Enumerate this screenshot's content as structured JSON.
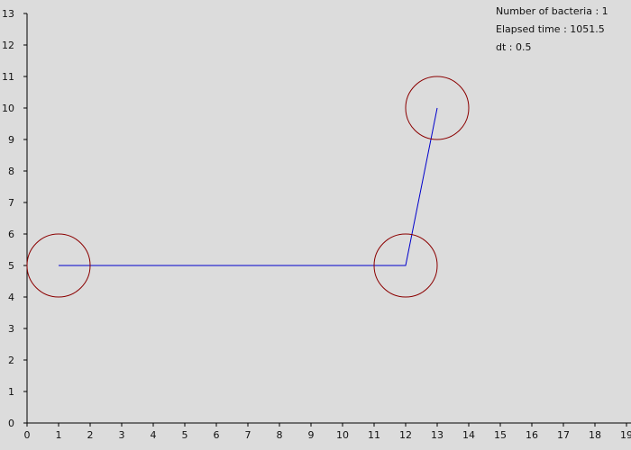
{
  "info": {
    "bacteria_label": "Number of bacteria",
    "bacteria_count": "1",
    "elapsed_label": "Elapsed time",
    "elapsed_value": "1051.5",
    "dt_label": "dt",
    "dt_value": "0.5"
  },
  "chart_data": {
    "type": "line",
    "title": "",
    "xlabel": "",
    "ylabel": "",
    "xlim": [
      0,
      19
    ],
    "ylim": [
      0,
      13
    ],
    "x_ticks": [
      0,
      1,
      2,
      3,
      4,
      5,
      6,
      7,
      8,
      9,
      10,
      11,
      12,
      13,
      14,
      15,
      16,
      17,
      18,
      19
    ],
    "y_ticks": [
      0,
      1,
      2,
      3,
      4,
      5,
      6,
      7,
      8,
      9,
      10,
      11,
      12,
      13
    ],
    "grid": false,
    "series": [
      {
        "color": "#0000cc",
        "points": [
          [
            1,
            5
          ],
          [
            12,
            5
          ],
          [
            13,
            10
          ]
        ]
      }
    ],
    "circles": [
      {
        "x": 1,
        "y": 5,
        "r": 1,
        "color": "#8b0000"
      },
      {
        "x": 12,
        "y": 5,
        "r": 1,
        "color": "#8b0000"
      },
      {
        "x": 13,
        "y": 10,
        "r": 1,
        "color": "#8b0000"
      }
    ]
  }
}
